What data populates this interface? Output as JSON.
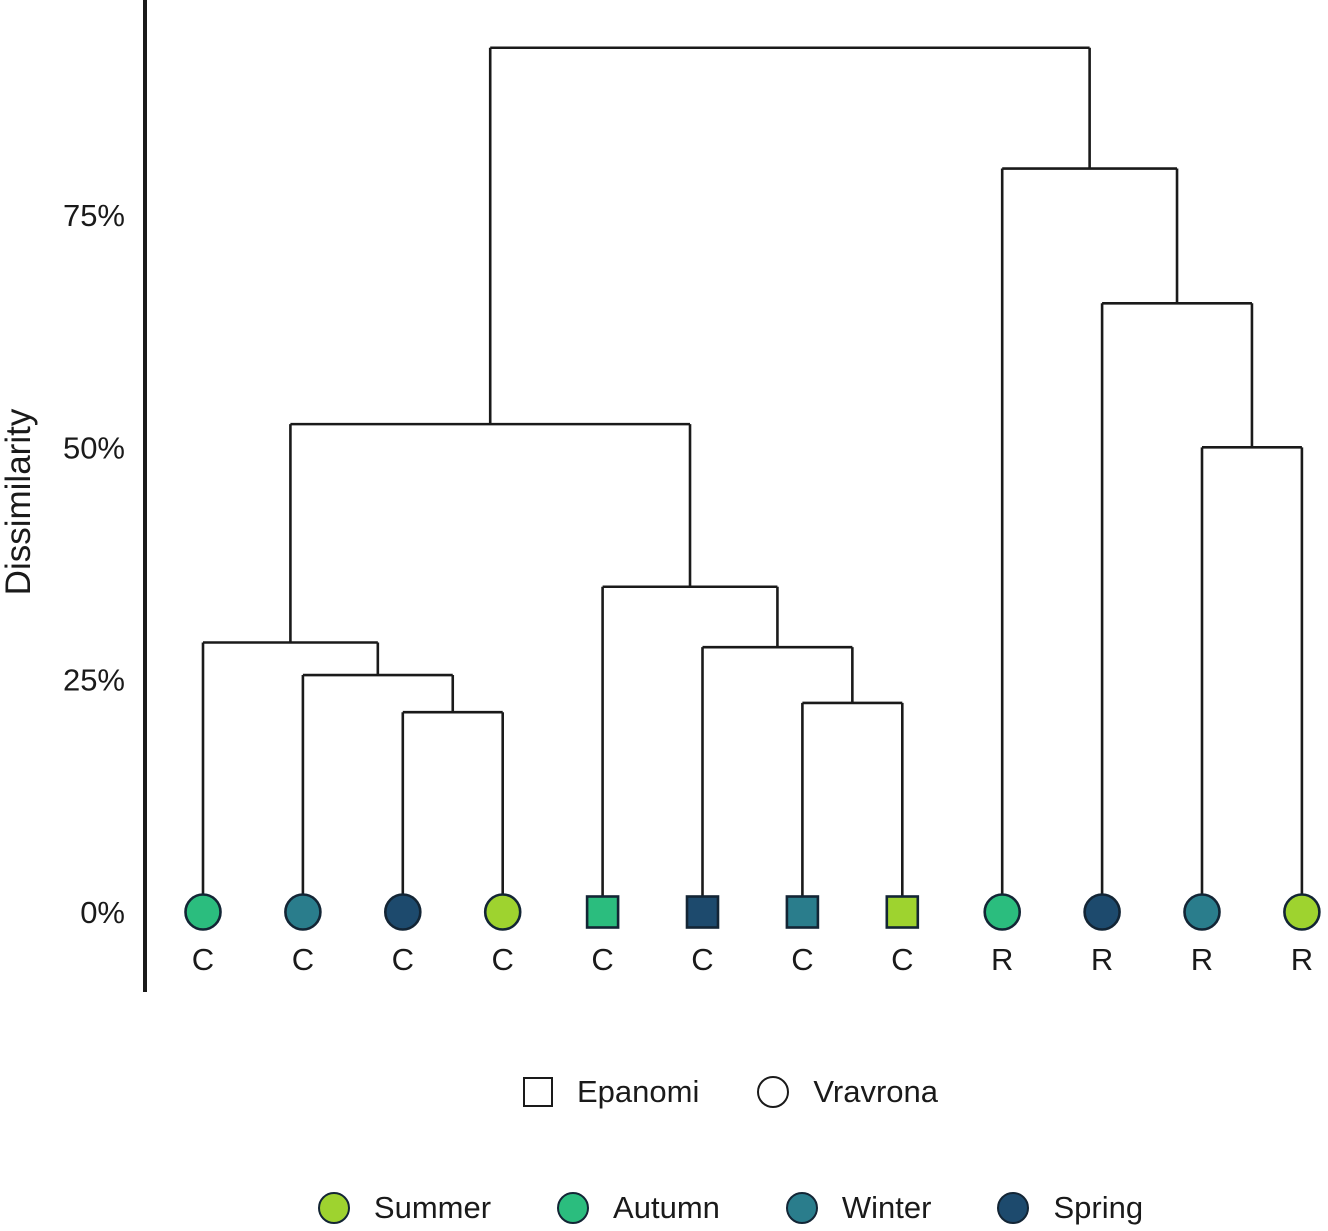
{
  "figure": {
    "ylabel": "Dissimilarity"
  },
  "palette": {
    "Summer": "#9ed32f",
    "Autumn": "#2bbd7e",
    "Winter": "#2a7d8c",
    "Spring": "#1d4a6d",
    "line": "#1a1a1a",
    "marker_outline": "#132535"
  },
  "legend_site": {
    "items": [
      {
        "label": "Epanomi",
        "marker": "square"
      },
      {
        "label": "Vravrona",
        "marker": "circle"
      }
    ]
  },
  "legend_season": {
    "items": [
      {
        "label": "Summer",
        "season": "Summer"
      },
      {
        "label": "Autumn",
        "season": "Autumn"
      },
      {
        "label": "Winter",
        "season": "Winter"
      },
      {
        "label": "Spring",
        "season": "Spring"
      }
    ]
  },
  "chart_data": {
    "type": "dendrogram",
    "title": "",
    "ylabel": "Dissimilarity",
    "ylim": [
      0,
      100
    ],
    "yticks": [
      {
        "value": 0,
        "label": "0%"
      },
      {
        "value": 25,
        "label": "25%"
      },
      {
        "value": 50,
        "label": "50%"
      },
      {
        "value": 75,
        "label": "75%"
      }
    ],
    "grid": false,
    "legend_position": "bottom",
    "marker_legend": {
      "square": "Epanomi",
      "circle": "Vravrona"
    },
    "leaves": [
      {
        "id": "L0",
        "label": "C",
        "marker": "circle",
        "season": "Autumn",
        "site": "Vravrona"
      },
      {
        "id": "L1",
        "label": "C",
        "marker": "circle",
        "season": "Winter",
        "site": "Vravrona"
      },
      {
        "id": "L2",
        "label": "C",
        "marker": "circle",
        "season": "Spring",
        "site": "Vravrona"
      },
      {
        "id": "L3",
        "label": "C",
        "marker": "circle",
        "season": "Summer",
        "site": "Vravrona"
      },
      {
        "id": "L4",
        "label": "C",
        "marker": "square",
        "season": "Autumn",
        "site": "Epanomi"
      },
      {
        "id": "L5",
        "label": "C",
        "marker": "square",
        "season": "Spring",
        "site": "Epanomi"
      },
      {
        "id": "L6",
        "label": "C",
        "marker": "square",
        "season": "Winter",
        "site": "Epanomi"
      },
      {
        "id": "L7",
        "label": "C",
        "marker": "square",
        "season": "Summer",
        "site": "Epanomi"
      },
      {
        "id": "L8",
        "label": "R",
        "marker": "circle",
        "season": "Autumn",
        "site": "Vravrona"
      },
      {
        "id": "L9",
        "label": "R",
        "marker": "circle",
        "season": "Spring",
        "site": "Vravrona"
      },
      {
        "id": "L10",
        "label": "R",
        "marker": "circle",
        "season": "Winter",
        "site": "Vravrona"
      },
      {
        "id": "L11",
        "label": "R",
        "marker": "circle",
        "season": "Summer",
        "site": "Vravrona"
      }
    ],
    "merges": [
      {
        "id": "M0",
        "children": [
          "L2",
          "L3"
        ],
        "height": 21.5
      },
      {
        "id": "M1",
        "children": [
          "L1",
          "M0"
        ],
        "height": 25.5
      },
      {
        "id": "M2",
        "children": [
          "L0",
          "M1"
        ],
        "height": 29
      },
      {
        "id": "M3",
        "children": [
          "L6",
          "L7"
        ],
        "height": 22.5
      },
      {
        "id": "M4",
        "children": [
          "L5",
          "M3"
        ],
        "height": 28.5
      },
      {
        "id": "M5",
        "children": [
          "L4",
          "M4"
        ],
        "height": 35
      },
      {
        "id": "M6",
        "children": [
          "M2",
          "M5"
        ],
        "height": 52.5
      },
      {
        "id": "M7",
        "children": [
          "L10",
          "L11"
        ],
        "height": 50
      },
      {
        "id": "M8",
        "children": [
          "L9",
          "M7"
        ],
        "height": 65.5
      },
      {
        "id": "M9",
        "children": [
          "L8",
          "M8"
        ],
        "height": 80
      },
      {
        "id": "M10",
        "children": [
          "M6",
          "M9"
        ],
        "height": 93
      }
    ]
  }
}
